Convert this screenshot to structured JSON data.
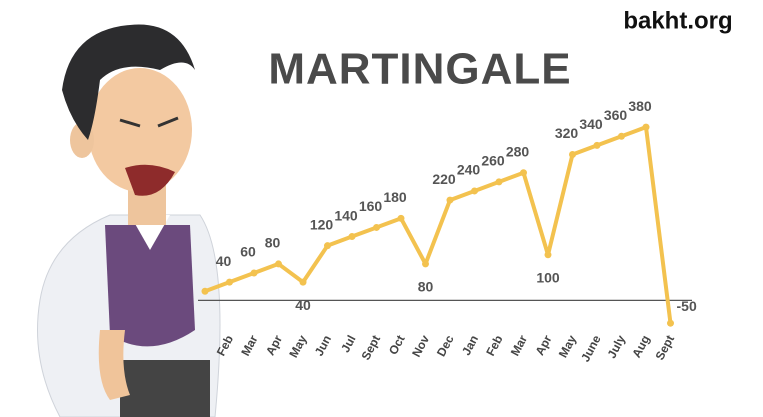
{
  "site": "bakht.org",
  "chart_data": {
    "type": "line",
    "title": "MARTINGALE",
    "categories": [
      null,
      "Feb",
      "Mar",
      "Apr",
      "May",
      "Jun",
      "Jul",
      "Sept",
      "Oct",
      "Nov",
      "Dec",
      "Jan",
      "Feb",
      "Mar",
      "Apr",
      "May",
      "June",
      "July",
      "Aug",
      "Sept"
    ],
    "values": [
      20,
      40,
      60,
      80,
      40,
      120,
      140,
      160,
      180,
      80,
      220,
      240,
      260,
      280,
      100,
      320,
      340,
      360,
      380,
      -50
    ],
    "color": "#f3c24f",
    "ylim": [
      -100,
      400
    ]
  }
}
